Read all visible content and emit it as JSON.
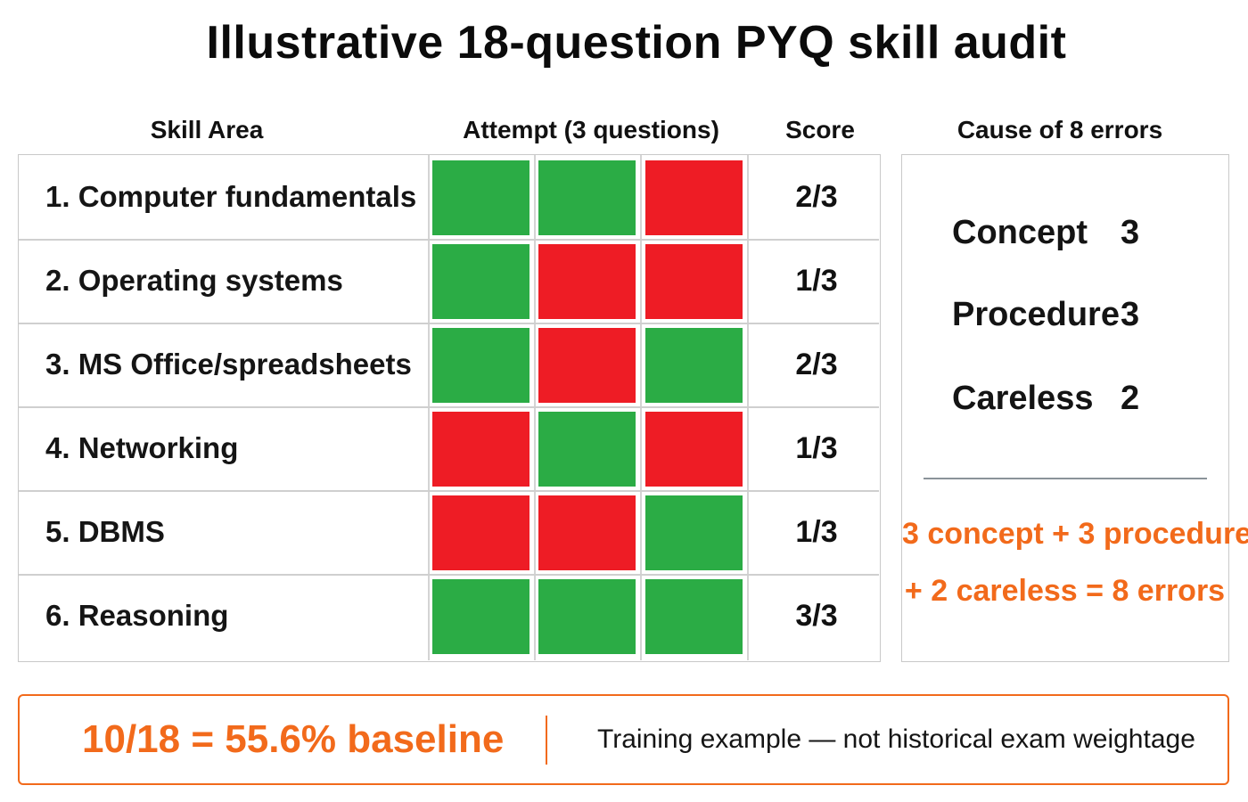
{
  "title": "Illustrative 18-question PYQ skill audit",
  "headers": {
    "skill": "Skill Area",
    "attempt": "Attempt (3 questions)",
    "score": "Score",
    "causes": "Cause of 8 errors"
  },
  "colors": {
    "correct": "#2bac45",
    "wrong": "#ee1c25",
    "accent": "#f26a1b"
  },
  "rows": [
    {
      "label": "1.  Computer fundamentals",
      "attempts": [
        1,
        1,
        0
      ],
      "score": "2/3"
    },
    {
      "label": "2.  Operating systems",
      "attempts": [
        1,
        0,
        0
      ],
      "score": "1/3"
    },
    {
      "label": "3.  MS Office/spreadsheets",
      "attempts": [
        1,
        0,
        1
      ],
      "score": "2/3"
    },
    {
      "label": "4.  Networking",
      "attempts": [
        0,
        1,
        0
      ],
      "score": "1/3"
    },
    {
      "label": "5.  DBMS",
      "attempts": [
        0,
        0,
        1
      ],
      "score": "1/3"
    },
    {
      "label": "6.  Reasoning",
      "attempts": [
        1,
        1,
        1
      ],
      "score": "3/3"
    }
  ],
  "causes": [
    {
      "label": "Concept",
      "count": "3"
    },
    {
      "label": "Procedure",
      "count": "3"
    },
    {
      "label": "Careless",
      "count": "2"
    }
  ],
  "cause_summary": {
    "line1": "3 concept + 3 procedure",
    "line2": "+ 2 careless = 8 errors"
  },
  "banner": {
    "main": "10/18 = 55.6% baseline",
    "note": "Training example — not historical exam weightage"
  }
}
